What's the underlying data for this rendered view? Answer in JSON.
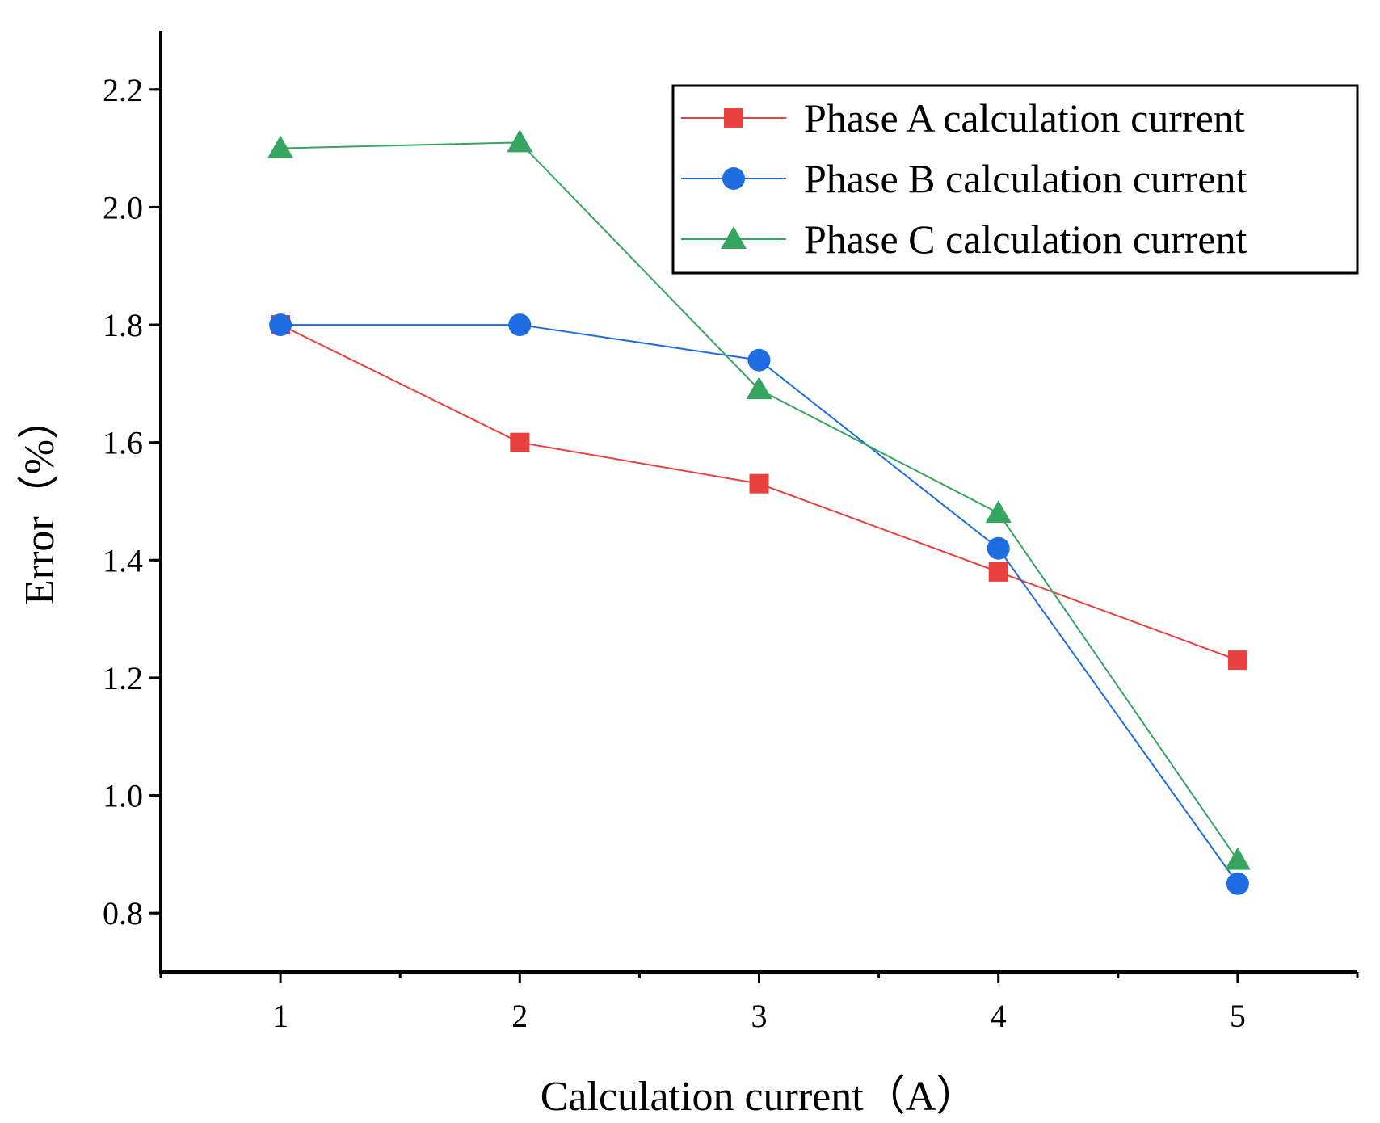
{
  "chart_data": {
    "type": "line",
    "title": "",
    "xlabel": "Calculation current（A）",
    "ylabel": "Error（%）",
    "xlim": [
      0.5,
      5.5
    ],
    "ylim": [
      0.7,
      2.3
    ],
    "x_ticks": [
      1,
      2,
      3,
      4,
      5
    ],
    "x_tick_labels": [
      "1",
      "2",
      "3",
      "4",
      "5"
    ],
    "y_ticks": [
      0.8,
      1.0,
      1.2,
      1.4,
      1.6,
      1.8,
      2.0,
      2.2
    ],
    "y_tick_labels": [
      "0.8",
      "1.0",
      "1.2",
      "1.4",
      "1.6",
      "1.8",
      "2.0",
      "2.2"
    ],
    "grid": false,
    "legend_position": "top-right",
    "x": [
      1,
      2,
      3,
      4,
      5
    ],
    "series": [
      {
        "name": "Phase A calculation current",
        "values": [
          1.8,
          1.6,
          1.53,
          1.38,
          1.23
        ],
        "color": "#e8413f",
        "marker": "square"
      },
      {
        "name": "Phase B calculation current",
        "values": [
          1.8,
          1.8,
          1.74,
          1.42,
          0.85
        ],
        "color": "#1e6de0",
        "marker": "circle"
      },
      {
        "name": "Phase C calculation current",
        "values": [
          2.1,
          2.11,
          1.69,
          1.48,
          0.89
        ],
        "color": "#35a560",
        "marker": "triangle"
      }
    ]
  }
}
